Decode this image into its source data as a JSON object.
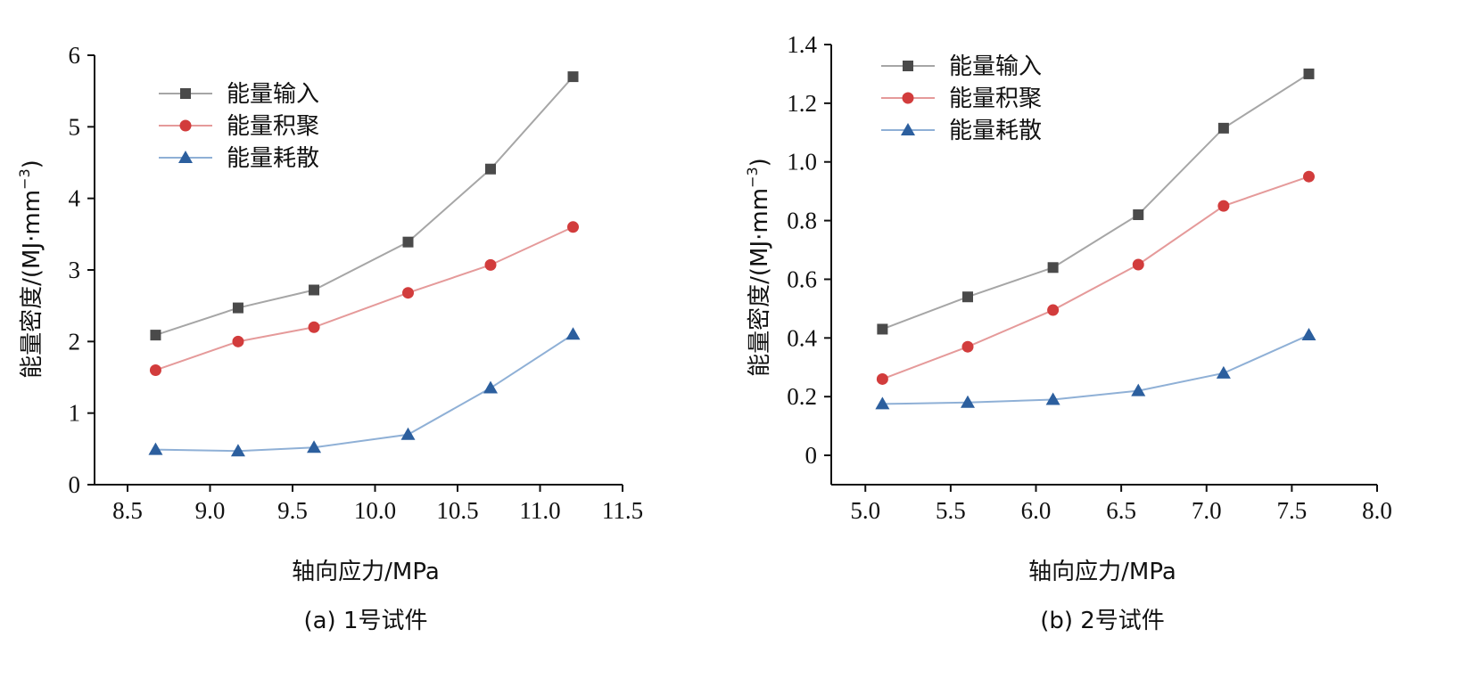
{
  "chart_data": [
    {
      "type": "line",
      "caption_prefix": "(a)",
      "caption": "1号试件",
      "xlabel": "轴向应力/MPa",
      "ylabel": "能量密度/(MJ·mm",
      "ylabel_exp": "−3",
      "ylabel_close": ")",
      "xlim": [
        8.3,
        11.5
      ],
      "ylim": [
        0,
        6
      ],
      "xticks": [
        8.5,
        9.0,
        9.5,
        10.0,
        10.5,
        11.0,
        11.5
      ],
      "xtick_labels": [
        "8.5",
        "9.0",
        "9.5",
        "10.0",
        "10.5",
        "11.0",
        "11.5"
      ],
      "yticks": [
        0,
        1,
        2,
        3,
        4,
        5,
        6
      ],
      "ytick_labels": [
        "0",
        "1",
        "2",
        "3",
        "4",
        "5",
        "6"
      ],
      "legend_position": "top-left",
      "series": [
        {
          "name": "能量输入",
          "marker": "square",
          "marker_color": "#4a4a4a",
          "line_color": "#a6a6a6",
          "x": [
            8.67,
            9.17,
            9.63,
            10.2,
            10.7,
            11.2
          ],
          "y": [
            2.09,
            2.47,
            2.72,
            3.39,
            4.41,
            5.7
          ]
        },
        {
          "name": "能量积聚",
          "marker": "circle",
          "marker_color": "#d23c3c",
          "line_color": "#e59a9a",
          "x": [
            8.67,
            9.17,
            9.63,
            10.2,
            10.7,
            11.2
          ],
          "y": [
            1.6,
            2.0,
            2.2,
            2.68,
            3.07,
            3.6
          ]
        },
        {
          "name": "能量耗散",
          "marker": "triangle",
          "marker_color": "#2c5f9e",
          "line_color": "#8fb0d6",
          "x": [
            8.67,
            9.17,
            9.63,
            10.2,
            10.7,
            11.2
          ],
          "y": [
            0.49,
            0.47,
            0.52,
            0.7,
            1.35,
            2.1
          ]
        }
      ]
    },
    {
      "type": "line",
      "caption_prefix": "(b)",
      "caption": "2号试件",
      "xlabel": "轴向应力/MPa",
      "ylabel": "能量密度/(MJ·mm",
      "ylabel_exp": "−3",
      "ylabel_close": ")",
      "xlim": [
        4.8,
        8.0
      ],
      "ylim": [
        -0.1,
        1.4
      ],
      "xticks": [
        5.0,
        5.5,
        6.0,
        6.5,
        7.0,
        7.5,
        8.0
      ],
      "xtick_labels": [
        "5.0",
        "5.5",
        "6.0",
        "6.5",
        "7.0",
        "7.5",
        "8.0"
      ],
      "yticks": [
        0,
        0.2,
        0.4,
        0.6,
        0.8,
        1.0,
        1.2,
        1.4
      ],
      "ytick_labels": [
        "0",
        "0.2",
        "0.4",
        "0.6",
        "0.8",
        "1.0",
        "1.2",
        "1.4"
      ],
      "legend_position": "top-left",
      "series": [
        {
          "name": "能量输入",
          "marker": "square",
          "marker_color": "#4a4a4a",
          "line_color": "#a6a6a6",
          "x": [
            5.1,
            5.6,
            6.1,
            6.6,
            7.1,
            7.6
          ],
          "y": [
            0.43,
            0.54,
            0.64,
            0.82,
            1.115,
            1.3
          ]
        },
        {
          "name": "能量积聚",
          "marker": "circle",
          "marker_color": "#d23c3c",
          "line_color": "#e59a9a",
          "x": [
            5.1,
            5.6,
            6.1,
            6.6,
            7.1,
            7.6
          ],
          "y": [
            0.26,
            0.37,
            0.495,
            0.65,
            0.85,
            0.95
          ]
        },
        {
          "name": "能量耗散",
          "marker": "triangle",
          "marker_color": "#2c5f9e",
          "line_color": "#8fb0d6",
          "x": [
            5.1,
            5.6,
            6.1,
            6.6,
            7.1,
            7.6
          ],
          "y": [
            0.175,
            0.18,
            0.19,
            0.22,
            0.28,
            0.41
          ]
        }
      ]
    }
  ]
}
